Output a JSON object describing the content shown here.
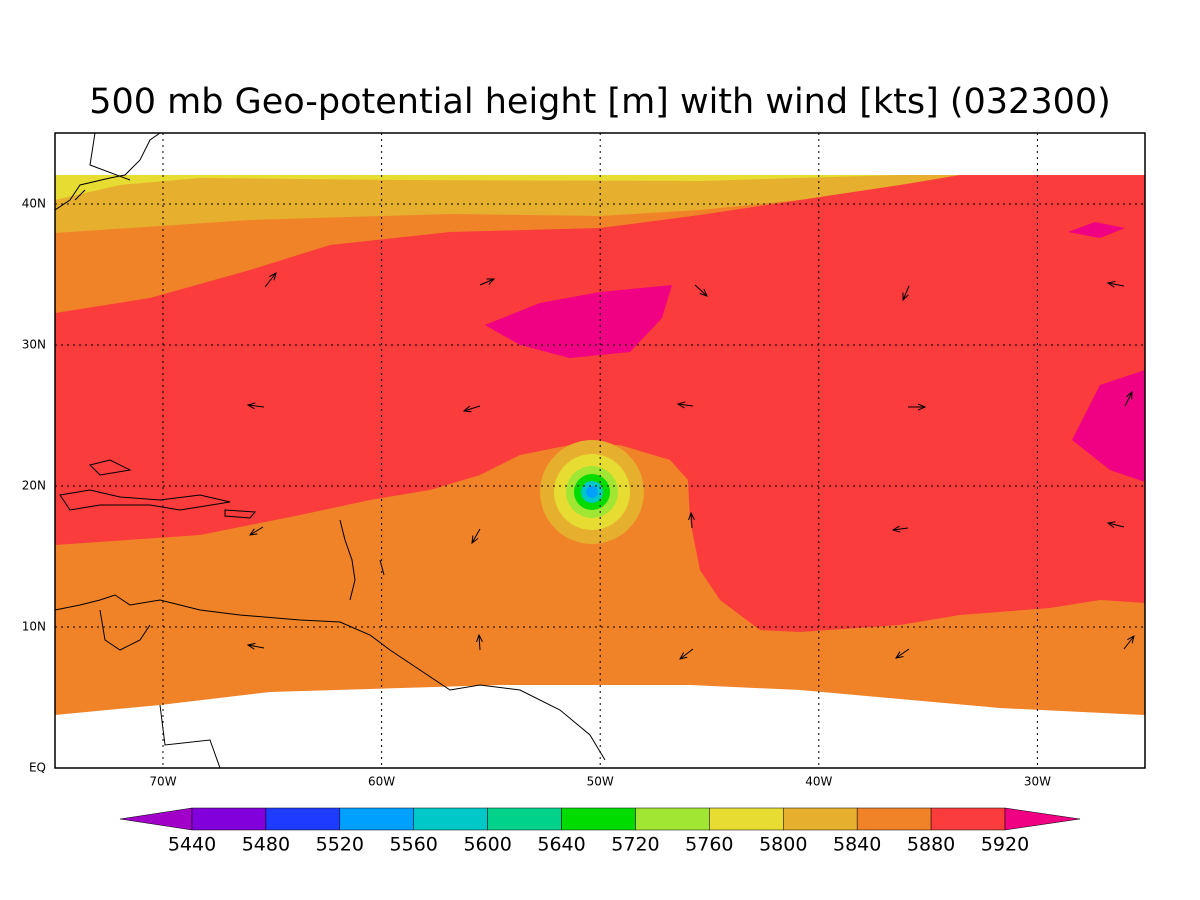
{
  "title": "500 mb Geo-potential height [m] with wind [kts] (032300)",
  "map": {
    "x_labels": [
      "70W",
      "60W",
      "50W",
      "40W",
      "30W"
    ],
    "y_labels": [
      "EQ",
      "10N",
      "20N",
      "30N",
      "40N"
    ]
  },
  "colorbar": {
    "levels": [
      5440,
      5480,
      5520,
      5560,
      5600,
      5640,
      5720,
      5760,
      5800,
      5840,
      5880,
      5920
    ],
    "colors": [
      "#a000c8",
      "#8200dc",
      "#1e3cff",
      "#00a0ff",
      "#00c8c8",
      "#00d28c",
      "#00dc00",
      "#a0e632",
      "#e6dc32",
      "#e6af2d",
      "#f08228",
      "#fa3c3c",
      "#f00082"
    ]
  }
}
